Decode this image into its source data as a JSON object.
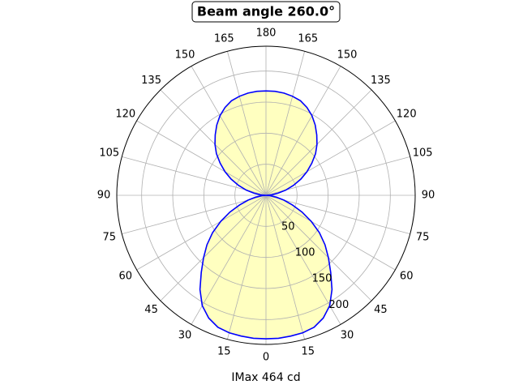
{
  "chart_data": {
    "type": "polar",
    "title": "Beam angle 260.0°",
    "xlabel": "IMax 464 cd",
    "theta": [
      0,
      5,
      10,
      15,
      20,
      25,
      30,
      35,
      40,
      45,
      50,
      55,
      60,
      65,
      70,
      75,
      80,
      85,
      90,
      95,
      100,
      105,
      110,
      115,
      120,
      125,
      130,
      135,
      140,
      145,
      150,
      155,
      160,
      165,
      170,
      175,
      180,
      185,
      190,
      195,
      200,
      205,
      210,
      215,
      220,
      225,
      230,
      235,
      240,
      245,
      250,
      255,
      260,
      265,
      270,
      275,
      280,
      285,
      290,
      295,
      300,
      305,
      310,
      315,
      320,
      325,
      330,
      335,
      340,
      345,
      350,
      355,
      360
    ],
    "values": [
      231,
      231,
      230,
      229,
      226,
      218,
      205,
      185,
      162,
      142,
      124,
      105,
      84,
      64,
      45,
      30,
      17,
      7,
      0,
      9,
      20,
      33,
      47,
      62,
      76,
      90,
      104,
      116,
      127,
      138,
      148,
      156,
      162,
      165,
      167,
      168,
      168,
      168,
      167,
      165,
      162,
      156,
      148,
      138,
      127,
      116,
      104,
      90,
      76,
      62,
      47,
      33,
      20,
      9,
      0,
      7,
      17,
      30,
      45,
      64,
      84,
      105,
      124,
      142,
      162,
      185,
      205,
      218,
      226,
      229,
      230,
      231,
      231
    ],
    "color": "#0000ff",
    "fill_color": "#ffffc0",
    "rlim": [
      0,
      240
    ],
    "rticks": [
      50,
      100,
      150,
      200
    ],
    "thetaticks": [
      0,
      15,
      30,
      45,
      60,
      75,
      90,
      105,
      120,
      135,
      150,
      165,
      180,
      {
        "value": 195,
        "label": "165"
      },
      {
        "value": 210,
        "label": "150"
      },
      {
        "value": 225,
        "label": "135"
      },
      {
        "value": 240,
        "label": "120"
      },
      {
        "value": 255,
        "label": "105"
      },
      {
        "value": 270,
        "label": "90"
      },
      {
        "value": 285,
        "label": "75"
      },
      {
        "value": 300,
        "label": "60"
      },
      {
        "value": 315,
        "label": "45"
      },
      {
        "value": 330,
        "label": "30"
      },
      {
        "value": 345,
        "label": "15"
      }
    ],
    "grid": true
  }
}
